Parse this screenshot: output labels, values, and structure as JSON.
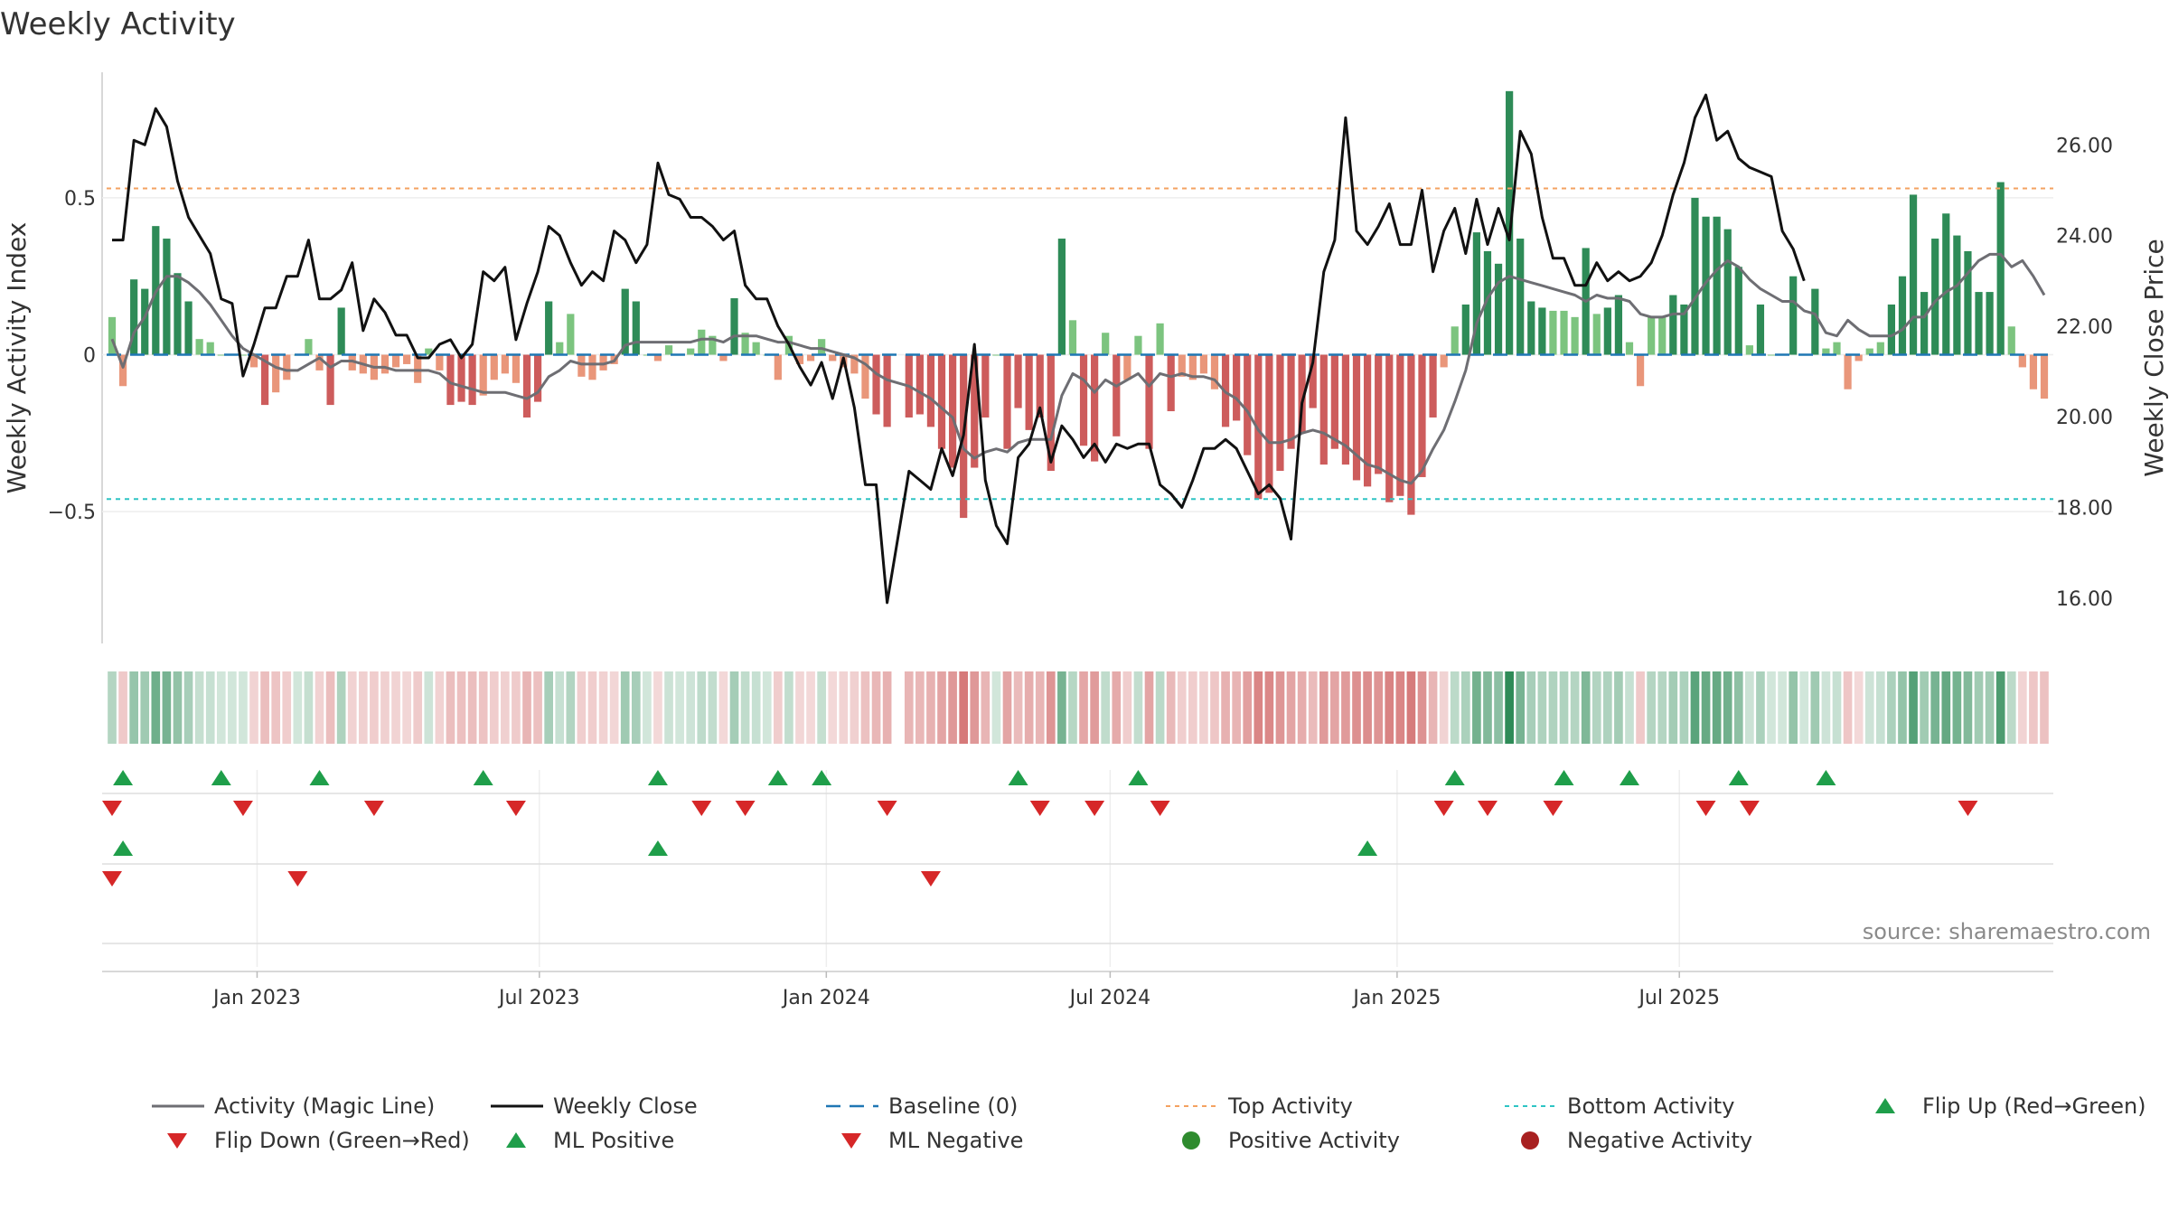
{
  "chart_data": {
    "type": "bar",
    "title": "Weekly Activity",
    "ylabel": "Weekly Activity Index",
    "y2label": "Weekly Close Price",
    "ylim": [
      -0.92,
      0.9
    ],
    "y2lim": [
      15.0,
      27.6
    ],
    "yticks": [
      {
        "v": 0.5,
        "label": "0.5"
      },
      {
        "v": 0,
        "label": "0"
      },
      {
        "v": -0.5,
        "label": "−0.5"
      }
    ],
    "y2ticks": [
      "26.00",
      "24.00",
      "22.00",
      "20.00",
      "18.00",
      "16.00"
    ],
    "x_start": "2022-09-30",
    "x_end": "2025-09-26",
    "x_ticks": [
      {
        "date": "2023-01-01",
        "label": "Jan 2023"
      },
      {
        "date": "2023-07-01",
        "label": "Jul 2023"
      },
      {
        "date": "2024-01-01",
        "label": "Jan 2024"
      },
      {
        "date": "2024-07-01",
        "label": "Jul 2024"
      },
      {
        "date": "2025-01-01",
        "label": "Jan 2025"
      },
      {
        "date": "2025-07-01",
        "label": "Jul 2025"
      }
    ],
    "top_activity": 0.53,
    "bottom_activity": -0.46,
    "baseline": 0,
    "gap_weeks": [
      72
    ],
    "activity_values": [
      0.12,
      -0.1,
      0.24,
      0.21,
      0.41,
      0.37,
      0.26,
      0.17,
      0.05,
      0.04,
      0.0,
      0.0,
      0.0,
      -0.04,
      -0.16,
      -0.12,
      -0.08,
      0.0,
      0.05,
      -0.05,
      -0.16,
      0.15,
      -0.05,
      -0.06,
      -0.08,
      -0.06,
      -0.04,
      -0.03,
      -0.09,
      0.02,
      -0.05,
      -0.16,
      -0.15,
      -0.16,
      -0.13,
      -0.08,
      -0.06,
      -0.09,
      -0.2,
      -0.15,
      0.17,
      0.04,
      0.13,
      -0.07,
      -0.08,
      -0.05,
      -0.03,
      0.21,
      0.17,
      0.0,
      -0.02,
      0.03,
      0.0,
      0.02,
      0.08,
      0.06,
      -0.02,
      0.18,
      0.07,
      0.04,
      0.0,
      -0.08,
      0.06,
      -0.03,
      -0.02,
      0.05,
      -0.02,
      -0.04,
      -0.06,
      -0.14,
      -0.19,
      -0.23,
      -0.2,
      -0.19,
      -0.23,
      -0.3,
      -0.36,
      -0.52,
      -0.36,
      -0.2,
      0.0,
      -0.3,
      -0.17,
      -0.24,
      -0.2,
      -0.37,
      0.37,
      0.11,
      -0.29,
      -0.34,
      0.07,
      -0.26,
      -0.08,
      0.06,
      -0.3,
      0.1,
      -0.18,
      -0.07,
      -0.08,
      -0.06,
      -0.11,
      -0.23,
      -0.21,
      -0.32,
      -0.46,
      -0.44,
      -0.37,
      -0.3,
      -0.25,
      -0.17,
      -0.35,
      -0.3,
      -0.35,
      -0.4,
      -0.42,
      -0.38,
      -0.47,
      -0.45,
      -0.51,
      -0.39,
      -0.2,
      -0.04,
      0.09,
      0.16,
      0.39,
      0.33,
      0.29,
      0.84,
      0.37,
      0.17,
      0.15,
      0.14,
      0.14,
      0.12,
      0.34,
      0.13,
      0.15,
      0.19,
      0.04,
      -0.1,
      0.12,
      0.12,
      0.19,
      0.16,
      0.5,
      0.44,
      0.44,
      0.4,
      0.28,
      0.03,
      0.16,
      0.0,
      0.0,
      0.25,
      0.0,
      0.21,
      0.02,
      0.04,
      -0.11,
      -0.02,
      0.02,
      0.04,
      0.16,
      0.25,
      0.51,
      0.2,
      0.37,
      0.45,
      0.38,
      0.33,
      0.2,
      0.2,
      0.55,
      0.09,
      -0.04,
      -0.11,
      -0.14
    ],
    "magic_line_values": [
      0.05,
      -0.04,
      0.07,
      0.12,
      0.2,
      0.25,
      0.25,
      0.23,
      0.2,
      0.16,
      0.11,
      0.06,
      0.02,
      0.0,
      -0.02,
      -0.04,
      -0.05,
      -0.05,
      -0.03,
      -0.01,
      -0.04,
      -0.02,
      -0.02,
      -0.03,
      -0.04,
      -0.04,
      -0.05,
      -0.05,
      -0.05,
      -0.05,
      -0.06,
      -0.09,
      -0.1,
      -0.11,
      -0.12,
      -0.12,
      -0.12,
      -0.13,
      -0.14,
      -0.12,
      -0.07,
      -0.05,
      -0.02,
      -0.03,
      -0.03,
      -0.03,
      -0.02,
      0.03,
      0.04,
      0.04,
      0.04,
      0.04,
      0.04,
      0.04,
      0.05,
      0.05,
      0.04,
      0.06,
      0.06,
      0.06,
      0.05,
      0.04,
      0.04,
      0.03,
      0.02,
      0.02,
      0.01,
      0.0,
      -0.01,
      -0.03,
      -0.06,
      -0.08,
      -0.1,
      -0.12,
      -0.14,
      -0.17,
      -0.2,
      -0.3,
      -0.33,
      -0.31,
      -0.3,
      -0.31,
      -0.28,
      -0.27,
      -0.27,
      -0.27,
      -0.13,
      -0.06,
      -0.08,
      -0.12,
      -0.08,
      -0.1,
      -0.08,
      -0.06,
      -0.1,
      -0.06,
      -0.07,
      -0.06,
      -0.07,
      -0.07,
      -0.08,
      -0.12,
      -0.14,
      -0.18,
      -0.24,
      -0.28,
      -0.28,
      -0.27,
      -0.25,
      -0.24,
      -0.25,
      -0.27,
      -0.29,
      -0.32,
      -0.35,
      -0.36,
      -0.38,
      -0.4,
      -0.41,
      -0.37,
      -0.3,
      -0.24,
      -0.15,
      -0.05,
      0.1,
      0.18,
      0.23,
      0.25,
      0.24,
      0.23,
      0.22,
      0.21,
      0.2,
      0.19,
      0.17,
      0.19,
      0.18,
      0.18,
      0.17,
      0.13,
      0.12,
      0.12,
      0.13,
      0.13,
      0.18,
      0.23,
      0.27,
      0.3,
      0.28,
      0.24,
      0.21,
      0.19,
      0.17,
      0.17,
      0.14,
      0.13,
      0.07,
      0.06,
      0.11,
      0.08,
      0.06,
      0.06,
      0.06,
      0.08,
      0.12,
      0.12,
      0.17,
      0.2,
      0.22,
      0.26,
      0.3,
      0.32,
      0.32,
      0.28,
      0.3,
      0.25,
      0.19,
      0.13
    ],
    "weekly_close_values": [
      23.9,
      23.9,
      26.1,
      26.0,
      26.8,
      26.4,
      25.2,
      24.4,
      24.0,
      23.6,
      22.6,
      22.5,
      20.9,
      21.6,
      22.4,
      22.4,
      23.1,
      23.1,
      23.9,
      22.6,
      22.6,
      22.8,
      23.4,
      21.9,
      22.6,
      22.3,
      21.8,
      21.8,
      21.3,
      21.3,
      21.6,
      21.7,
      21.3,
      21.6,
      23.2,
      23.0,
      23.3,
      21.7,
      22.5,
      23.2,
      24.2,
      24.0,
      23.4,
      22.9,
      23.2,
      23.0,
      24.1,
      23.9,
      23.4,
      23.8,
      25.6,
      24.9,
      24.8,
      24.4,
      24.4,
      24.2,
      23.9,
      24.1,
      22.9,
      22.6,
      22.6,
      22.0,
      21.6,
      21.1,
      20.7,
      21.2,
      20.4,
      21.3,
      20.2,
      18.5,
      18.5,
      15.9,
      18.8,
      18.6,
      18.4,
      19.3,
      18.7,
      19.6,
      21.6,
      18.6,
      17.6,
      17.2,
      19.1,
      19.4,
      20.2,
      19.0,
      19.8,
      19.5,
      19.1,
      19.4,
      19.0,
      19.4,
      19.3,
      19.4,
      19.4,
      18.5,
      18.3,
      18.0,
      18.6,
      19.3,
      19.3,
      19.5,
      19.3,
      18.8,
      18.3,
      18.5,
      18.2,
      17.3,
      20.3,
      21.2,
      23.2,
      23.9,
      26.6,
      24.1,
      23.8,
      24.2,
      24.7,
      23.8,
      23.8,
      25.0,
      23.2,
      24.1,
      24.6,
      23.6,
      24.8,
      23.8,
      24.6,
      23.9,
      26.3,
      25.8,
      24.4,
      23.5,
      23.5,
      22.9,
      22.9,
      23.4,
      23.0,
      23.2,
      23.0,
      23.1,
      23.4,
      24.0,
      24.9,
      25.6,
      26.6,
      27.1,
      26.1,
      26.3,
      25.7,
      25.5,
      25.4,
      25.3,
      24.1,
      23.7,
      23.0
    ],
    "top_activity_label": "Top Activity",
    "bottom_activity_label": "Bottom Activity",
    "flip_up_weeks": [
      1,
      10,
      19,
      34,
      50,
      61,
      65,
      83,
      94,
      123,
      133,
      139,
      149,
      157
    ],
    "flip_down_weeks": [
      0,
      12,
      24,
      37,
      54,
      58,
      71,
      85,
      90,
      96,
      122,
      126,
      132,
      146,
      150,
      170
    ],
    "ml_positive_weeks": [
      1,
      50,
      115
    ],
    "ml_negative_weeks": [
      0,
      17,
      75
    ],
    "series": [
      {
        "name": "Activity (Magic Line)",
        "color": "#6e6e73"
      },
      {
        "name": "Weekly Close",
        "color": "#111111"
      },
      {
        "name": "Baseline (0)",
        "color": "#1f77b4"
      },
      {
        "name": "Top Activity",
        "color": "#f4a261"
      },
      {
        "name": "Bottom Activity",
        "color": "#2ec4c4"
      },
      {
        "name": "Flip Up (Red→Green)",
        "color": "#1f9e4a"
      },
      {
        "name": "Flip Down (Green→Red)",
        "color": "#d62728"
      },
      {
        "name": "ML Positive",
        "color": "#1f9e4a"
      },
      {
        "name": "ML Negative",
        "color": "#d62728"
      },
      {
        "name": "Positive Activity",
        "color": "#2e8b2e"
      },
      {
        "name": "Negative Activity",
        "color": "#a82020"
      }
    ]
  },
  "source": "source: sharemaestro.com",
  "colors": {
    "pos_strong": "#2e8b57",
    "pos_light": "#7cc47f",
    "neg_strong": "#cd5c5c",
    "neg_light": "#e9967a"
  }
}
